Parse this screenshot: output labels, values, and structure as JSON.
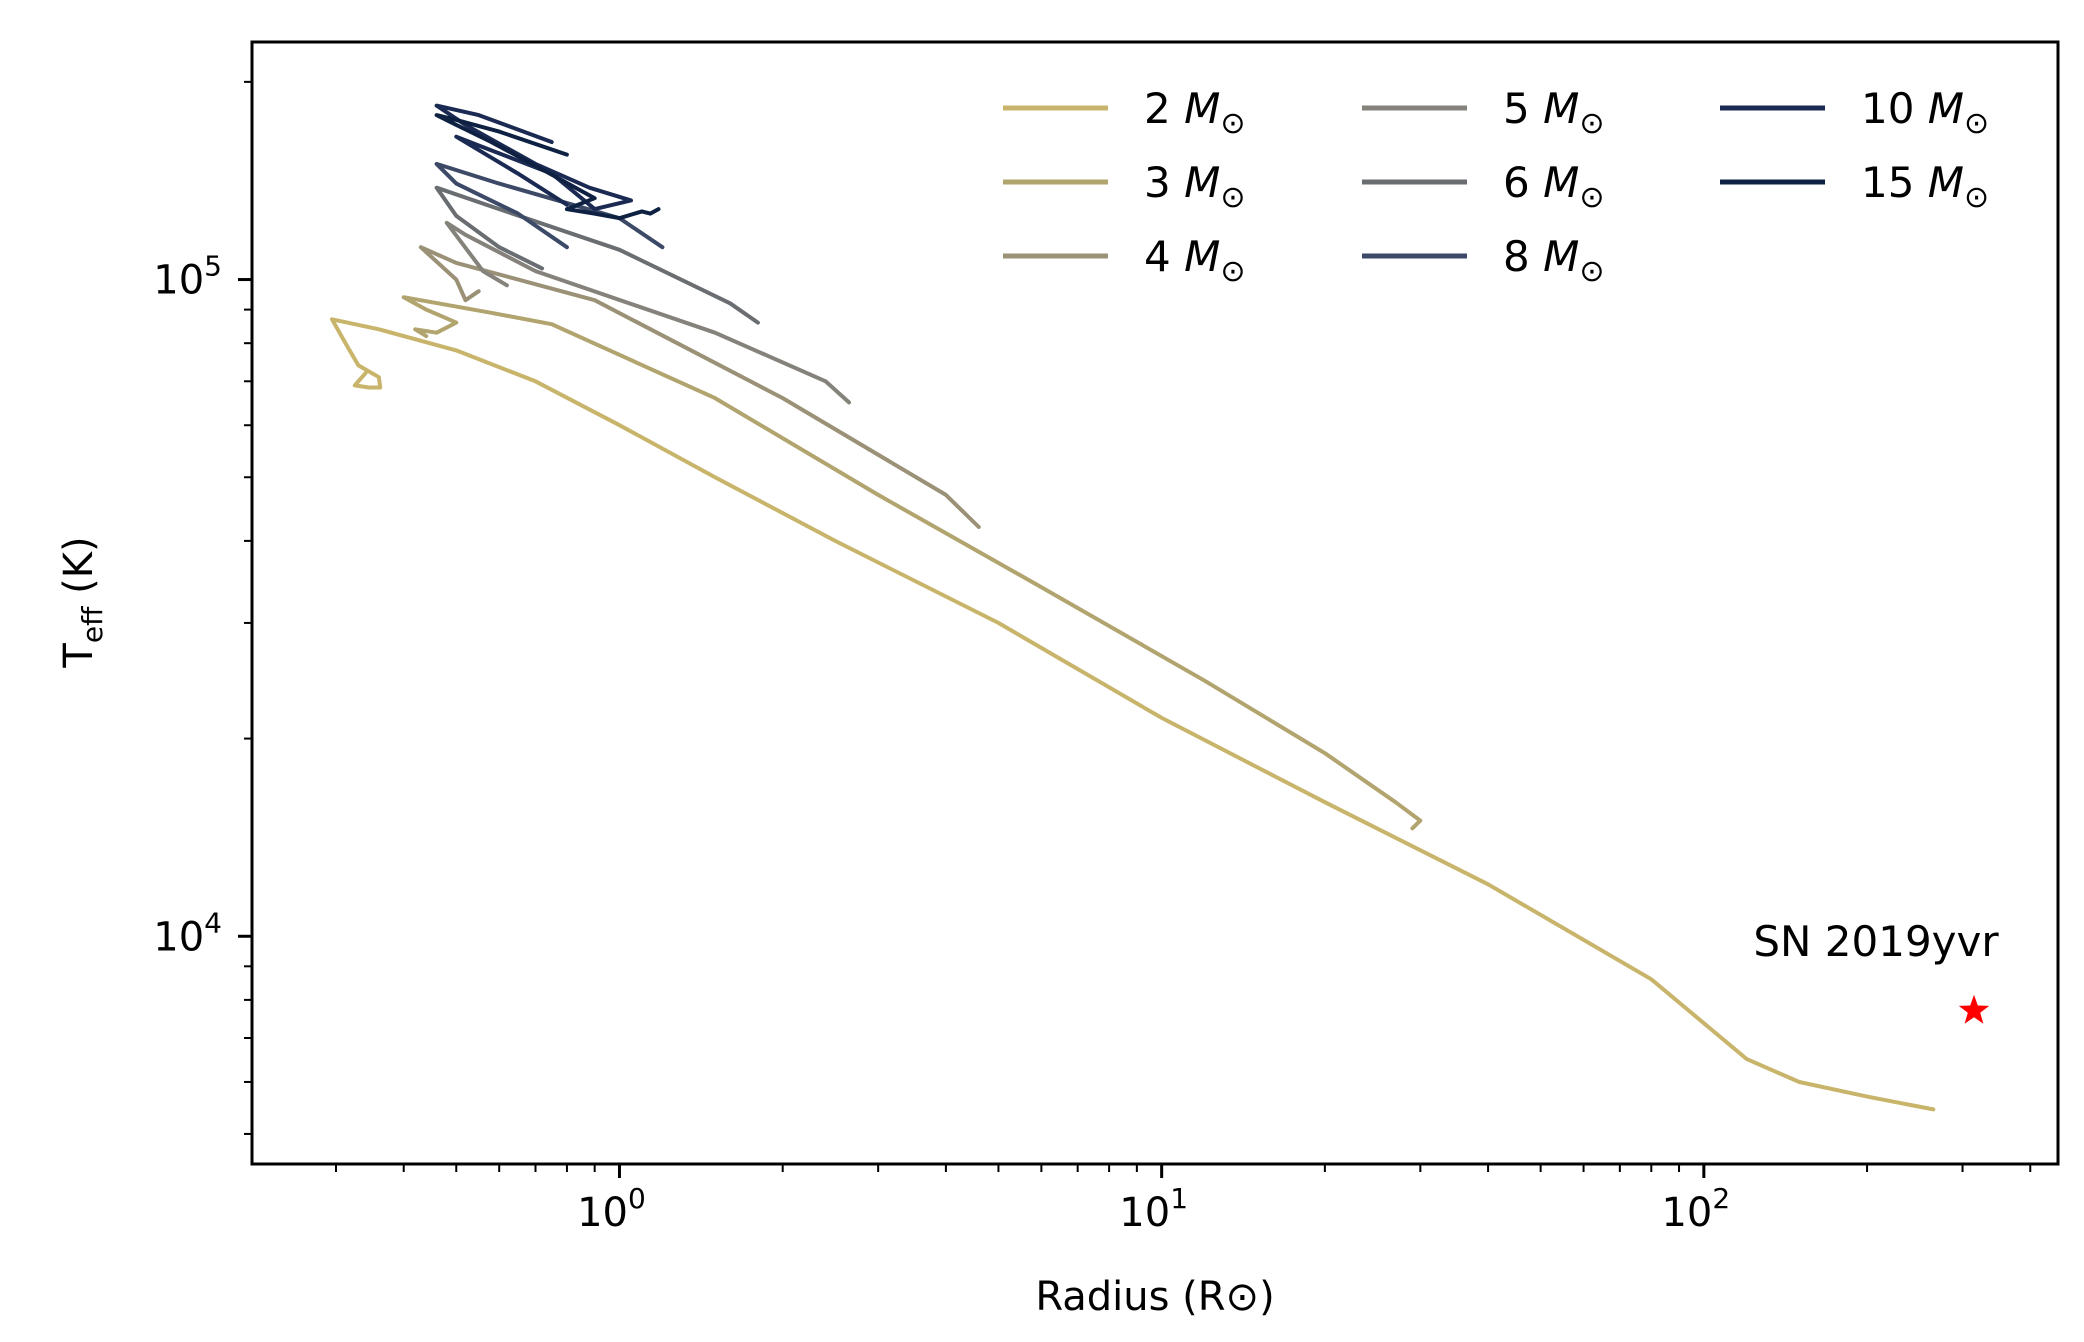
{
  "chart_data": {
    "type": "line",
    "xlabel": "Radius (R⊙)",
    "ylabel_main": "T",
    "ylabel_sub": "eff",
    "ylabel_unit": " (K)",
    "xscale": "log",
    "yscale": "log",
    "xlim": [
      0.21,
      450
    ],
    "ylim": [
      4500,
      230000
    ],
    "x_ticks": [
      {
        "value": 1,
        "base": "10",
        "exp": "0"
      },
      {
        "value": 10,
        "base": "10",
        "exp": "1"
      },
      {
        "value": 100,
        "base": "10",
        "exp": "2"
      }
    ],
    "y_ticks": [
      {
        "value": 10000,
        "base": "10",
        "exp": "4"
      },
      {
        "value": 100000,
        "base": "10",
        "exp": "5"
      }
    ],
    "legend_position": "top-right",
    "legend_columns": 3,
    "series": [
      {
        "name": "2",
        "unit": "M⊙",
        "color": "#c8b46a",
        "points": [
          [
            0.34,
            72000
          ],
          [
            0.325,
            69000
          ],
          [
            0.345,
            68500
          ],
          [
            0.362,
            68500
          ],
          [
            0.36,
            71000
          ],
          [
            0.33,
            74000
          ],
          [
            0.315,
            79000
          ],
          [
            0.295,
            87000
          ],
          [
            0.36,
            84000
          ],
          [
            0.5,
            78000
          ],
          [
            0.7,
            70000
          ],
          [
            1.0,
            60000
          ],
          [
            1.5,
            50000
          ],
          [
            2.5,
            40000
          ],
          [
            5,
            30000
          ],
          [
            10,
            21500
          ],
          [
            20,
            16000
          ],
          [
            40,
            12000
          ],
          [
            80,
            8600
          ],
          [
            120,
            6500
          ],
          [
            150,
            6000
          ],
          [
            200,
            5700
          ],
          [
            265,
            5450
          ]
        ]
      },
      {
        "name": "3",
        "unit": "M⊙",
        "color": "#b2a46e",
        "points": [
          [
            0.44,
            82000
          ],
          [
            0.42,
            84000
          ],
          [
            0.46,
            83000
          ],
          [
            0.5,
            86000
          ],
          [
            0.44,
            90000
          ],
          [
            0.4,
            94000
          ],
          [
            0.58,
            89000
          ],
          [
            0.75,
            85500
          ],
          [
            1.5,
            66000
          ],
          [
            3,
            47000
          ],
          [
            6,
            34000
          ],
          [
            12,
            24500
          ],
          [
            20,
            19000
          ],
          [
            27,
            16000
          ],
          [
            30,
            15000
          ],
          [
            29,
            14600
          ]
        ]
      },
      {
        "name": "4",
        "unit": "M⊙",
        "color": "#9a9177",
        "points": [
          [
            0.55,
            96000
          ],
          [
            0.52,
            93000
          ],
          [
            0.5,
            100000
          ],
          [
            0.43,
            112000
          ],
          [
            0.5,
            106000
          ],
          [
            0.9,
            93000
          ],
          [
            2,
            66000
          ],
          [
            4,
            47000
          ],
          [
            4.6,
            42000
          ]
        ]
      },
      {
        "name": "5",
        "unit": "M⊙",
        "color": "#84827a",
        "points": [
          [
            0.62,
            98000
          ],
          [
            0.56,
            103000
          ],
          [
            0.48,
            122000
          ],
          [
            0.52,
            117000
          ],
          [
            0.7,
            103000
          ],
          [
            1.5,
            83000
          ],
          [
            2.4,
            70000
          ],
          [
            2.65,
            65000
          ]
        ]
      },
      {
        "name": "6",
        "unit": "M⊙",
        "color": "#6a6d71",
        "points": [
          [
            0.72,
            104000
          ],
          [
            0.6,
            112000
          ],
          [
            0.5,
            125000
          ],
          [
            0.46,
            138000
          ],
          [
            0.6,
            128000
          ],
          [
            1.0,
            111000
          ],
          [
            1.6,
            92000
          ],
          [
            1.8,
            86000
          ]
        ]
      },
      {
        "name": "8",
        "unit": "M⊙",
        "color": "#3c4a68",
        "points": [
          [
            0.8,
            112000
          ],
          [
            0.65,
            126000
          ],
          [
            0.5,
            140000
          ],
          [
            0.46,
            150000
          ],
          [
            0.6,
            140000
          ],
          [
            1.0,
            124000
          ],
          [
            1.2,
            112000
          ]
        ]
      },
      {
        "name": "10",
        "unit": "M⊙",
        "color": "#1a2a52",
        "points": [
          [
            0.8,
            130000
          ],
          [
            0.65,
            145000
          ],
          [
            0.5,
            165000
          ],
          [
            0.55,
            160000
          ],
          [
            0.75,
            145000
          ],
          [
            0.9,
            128000
          ],
          [
            1.05,
            132000
          ],
          [
            0.88,
            138000
          ],
          [
            0.7,
            150000
          ],
          [
            0.52,
            172000
          ],
          [
            0.46,
            184000
          ],
          [
            0.55,
            178000
          ],
          [
            0.75,
            162000
          ]
        ]
      },
      {
        "name": "15",
        "unit": "M⊙",
        "color": "#0e2142",
        "points": [
          [
            1.18,
            128000
          ],
          [
            1.14,
            126000
          ],
          [
            1.1,
            127000
          ],
          [
            1.0,
            124000
          ],
          [
            0.9,
            126000
          ],
          [
            0.8,
            128000
          ],
          [
            0.9,
            133000
          ],
          [
            0.7,
            149000
          ],
          [
            0.58,
            162000
          ],
          [
            0.5,
            172000
          ],
          [
            0.46,
            178000
          ],
          [
            0.5,
            175000
          ],
          [
            0.6,
            168000
          ],
          [
            0.8,
            155000
          ]
        ]
      }
    ],
    "markers": [
      {
        "label": "SN 2019yvr",
        "x": 315,
        "y": 7700,
        "shape": "star",
        "color": "#ff0000"
      }
    ]
  }
}
